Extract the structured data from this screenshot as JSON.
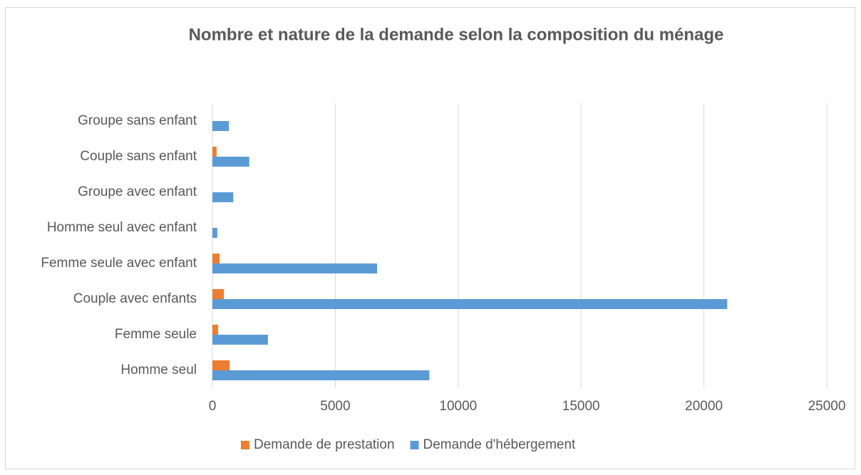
{
  "chart_data": {
    "type": "hbar",
    "title": "Nombre et nature de la demande selon la composition du ménage",
    "categories": [
      "Homme seul",
      "Femme seule",
      "Couple avec enfants",
      "Femme seule avec enfant",
      "Homme seul avec enfant",
      "Groupe avec enfant",
      "Couple sans enfant",
      "Groupe sans enfant"
    ],
    "series": [
      {
        "name": "Demande de prestation",
        "color": "#ed7d31",
        "values": [
          700,
          230,
          470,
          290,
          0,
          0,
          170,
          0
        ]
      },
      {
        "name": "Demande d'hébergement",
        "color": "#5b9bd5",
        "values": [
          8830,
          2260,
          20950,
          6700,
          200,
          850,
          1500,
          670
        ]
      }
    ],
    "xlim": [
      0,
      25000
    ],
    "xticks": [
      0,
      5000,
      10000,
      15000,
      20000,
      25000
    ],
    "grid": true,
    "legend": "bottom"
  }
}
